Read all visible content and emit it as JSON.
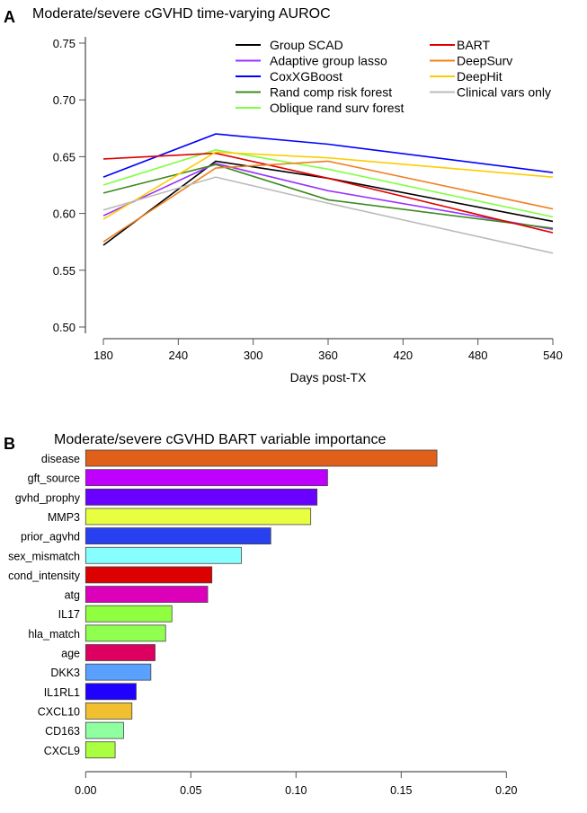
{
  "chart_data": [
    {
      "panel": "A",
      "type": "line",
      "title": "Moderate/severe cGVHD time-varying AUROC",
      "xlabel": "Days post-TX",
      "ylabel": "",
      "x": [
        180,
        270,
        360,
        540
      ],
      "xticks": [
        "180",
        "240",
        "300",
        "360",
        "420",
        "480",
        "540"
      ],
      "xlim": [
        180,
        540
      ],
      "yticks": [
        "0.50",
        "0.55",
        "0.60",
        "0.65",
        "0.70",
        "0.75"
      ],
      "ylim": [
        0.5,
        0.75
      ],
      "grid": false,
      "legend_position": "top-right",
      "series": [
        {
          "name": "Group SCAD",
          "color": "#000000",
          "values": [
            0.572,
            0.646,
            0.631,
            0.593
          ]
        },
        {
          "name": "Adaptive group lasso",
          "color": "#9933ff",
          "values": [
            0.598,
            0.644,
            0.62,
            0.586
          ]
        },
        {
          "name": "CoxXGBoost",
          "color": "#0000ff",
          "values": [
            0.632,
            0.67,
            0.661,
            0.636
          ]
        },
        {
          "name": "Rand comp risk forest",
          "color": "#3c8c1e",
          "values": [
            0.618,
            0.643,
            0.612,
            0.587
          ]
        },
        {
          "name": "Oblique rand surv forest",
          "color": "#80ff40",
          "values": [
            0.625,
            0.656,
            0.639,
            0.597
          ]
        },
        {
          "name": "BART",
          "color": "#e00000",
          "values": [
            0.648,
            0.653,
            0.631,
            0.583
          ]
        },
        {
          "name": "DeepSurv",
          "color": "#f08020",
          "values": [
            0.575,
            0.64,
            0.646,
            0.604
          ]
        },
        {
          "name": "DeepHit",
          "color": "#ffcc00",
          "values": [
            0.595,
            0.654,
            0.649,
            0.632
          ]
        },
        {
          "name": "Clinical vars only",
          "color": "#bbbbbb",
          "values": [
            0.603,
            0.632,
            0.609,
            0.565
          ]
        }
      ]
    },
    {
      "panel": "B",
      "type": "bar",
      "orientation": "horizontal",
      "title": "Moderate/severe cGVHD BART variable importance",
      "xlabel": "",
      "ylabel": "",
      "xlim": [
        0,
        0.2
      ],
      "xticks": [
        "0.00",
        "0.05",
        "0.10",
        "0.15",
        "0.20"
      ],
      "categories": [
        "disease",
        "gft_source",
        "gvhd_prophy",
        "MMP3",
        "prior_agvhd",
        "sex_mismatch",
        "cond_intensity",
        "atg",
        "IL17",
        "hla_match",
        "age",
        "DKK3",
        "IL1RL1",
        "CXCL10",
        "CD163",
        "CXCL9"
      ],
      "values": [
        0.167,
        0.115,
        0.11,
        0.107,
        0.088,
        0.074,
        0.06,
        0.058,
        0.041,
        0.038,
        0.033,
        0.031,
        0.024,
        0.022,
        0.018,
        0.014
      ],
      "colors": [
        "#e0601a",
        "#c000ff",
        "#6a00ff",
        "#e8ff40",
        "#2840f0",
        "#88ffff",
        "#dd0000",
        "#dd00bb",
        "#90ff40",
        "#90ff50",
        "#dd0060",
        "#5aa0ff",
        "#2000ff",
        "#f0c030",
        "#90ffa0",
        "#aaff40"
      ]
    }
  ]
}
